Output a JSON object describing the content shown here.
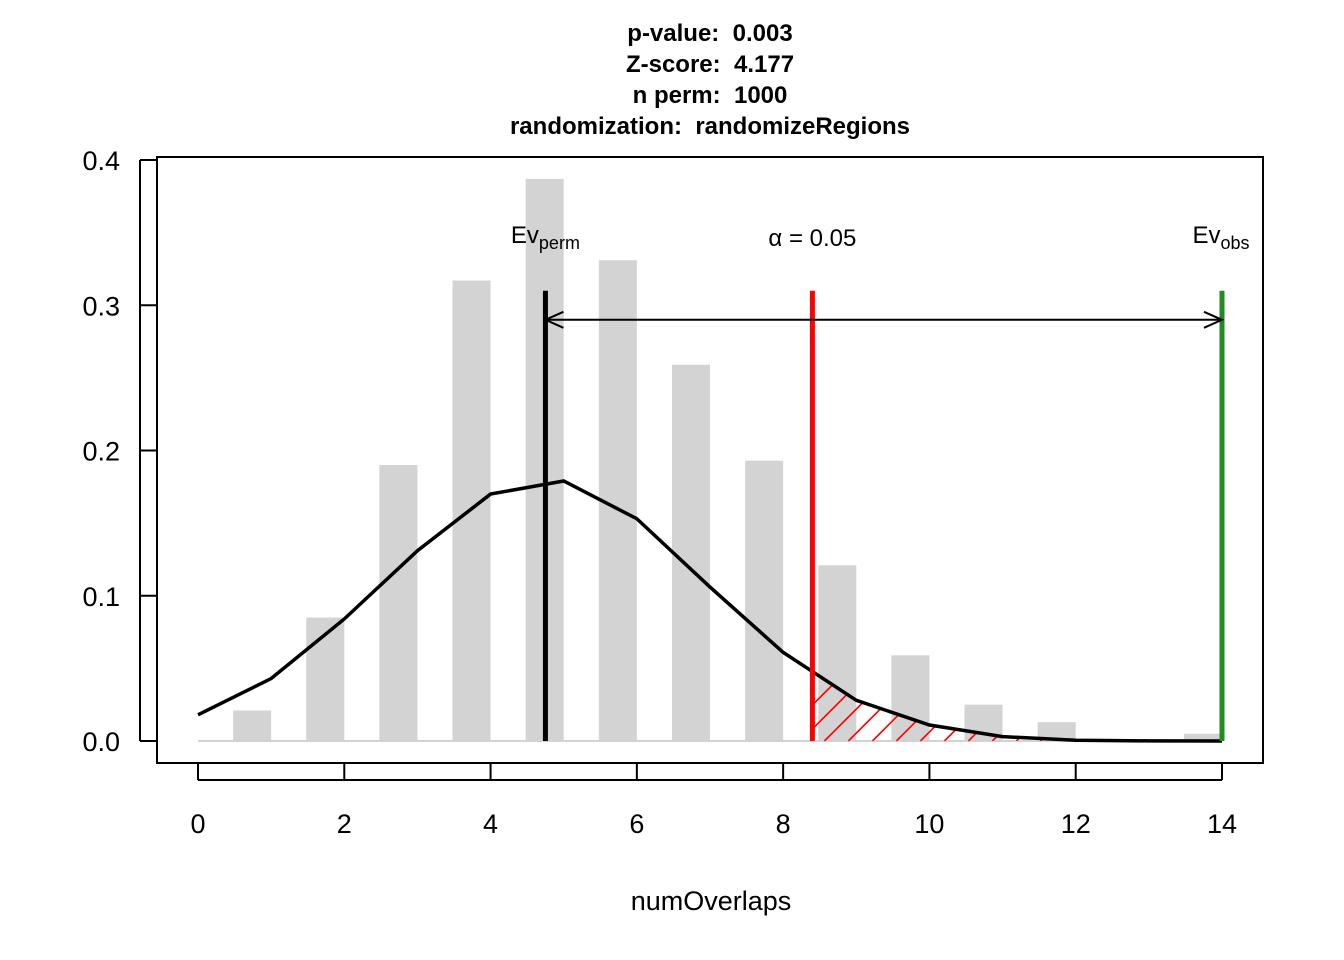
{
  "chart_data": {
    "type": "bar",
    "title_lines": [
      {
        "label": "p-value:",
        "value": "0.003"
      },
      {
        "label": "Z-score:",
        "value": "4.177"
      },
      {
        "label": "n perm:",
        "value": "1000"
      },
      {
        "label": "randomization:",
        "value": "randomizeRegions"
      }
    ],
    "xlabel": "numOverlaps",
    "ylabel": "",
    "xlim": [
      0,
      14
    ],
    "ylim": [
      0,
      0.4
    ],
    "x_ticks": [
      0,
      2,
      4,
      6,
      8,
      10,
      12,
      14
    ],
    "y_ticks": [
      0.0,
      0.1,
      0.2,
      0.3,
      0.4
    ],
    "y_tick_labels": [
      "0.0",
      "0.1",
      "0.2",
      "0.3",
      "0.4"
    ],
    "histogram": {
      "bin_width": 1,
      "bin_starts": [
        0,
        1,
        2,
        3,
        4,
        5,
        6,
        7,
        8,
        9,
        10,
        11,
        12,
        13
      ],
      "values": [
        0.021,
        0.085,
        0.19,
        0.317,
        0.387,
        0.331,
        0.259,
        0.193,
        0.121,
        0.059,
        0.025,
        0.013,
        0.001,
        0.005
      ],
      "color": "#d3d3d3"
    },
    "density_line": {
      "x": [
        0,
        1,
        2,
        3,
        4,
        5,
        6,
        7,
        8,
        9,
        10,
        11,
        12,
        13,
        14
      ],
      "y": [
        0.018,
        0.043,
        0.084,
        0.131,
        0.17,
        0.179,
        0.153,
        0.106,
        0.061,
        0.028,
        0.011,
        0.003,
        0.0005,
        0.0001,
        0.0
      ],
      "color": "#000000"
    },
    "markers": {
      "ev_perm": {
        "x": 4.75,
        "label_main": "Ev",
        "label_sub": "perm",
        "color": "#000000"
      },
      "alpha": {
        "x": 8.4,
        "label": "α = 0.05",
        "color": "#ff0000"
      },
      "ev_obs": {
        "x": 14,
        "label_main": "Ev",
        "label_sub": "obs",
        "color": "#228b22"
      }
    },
    "arrow": {
      "from": 4.75,
      "to": 14,
      "y": 0.29
    },
    "hatch_color": "#ff0000",
    "grid": false,
    "legend": "none"
  }
}
